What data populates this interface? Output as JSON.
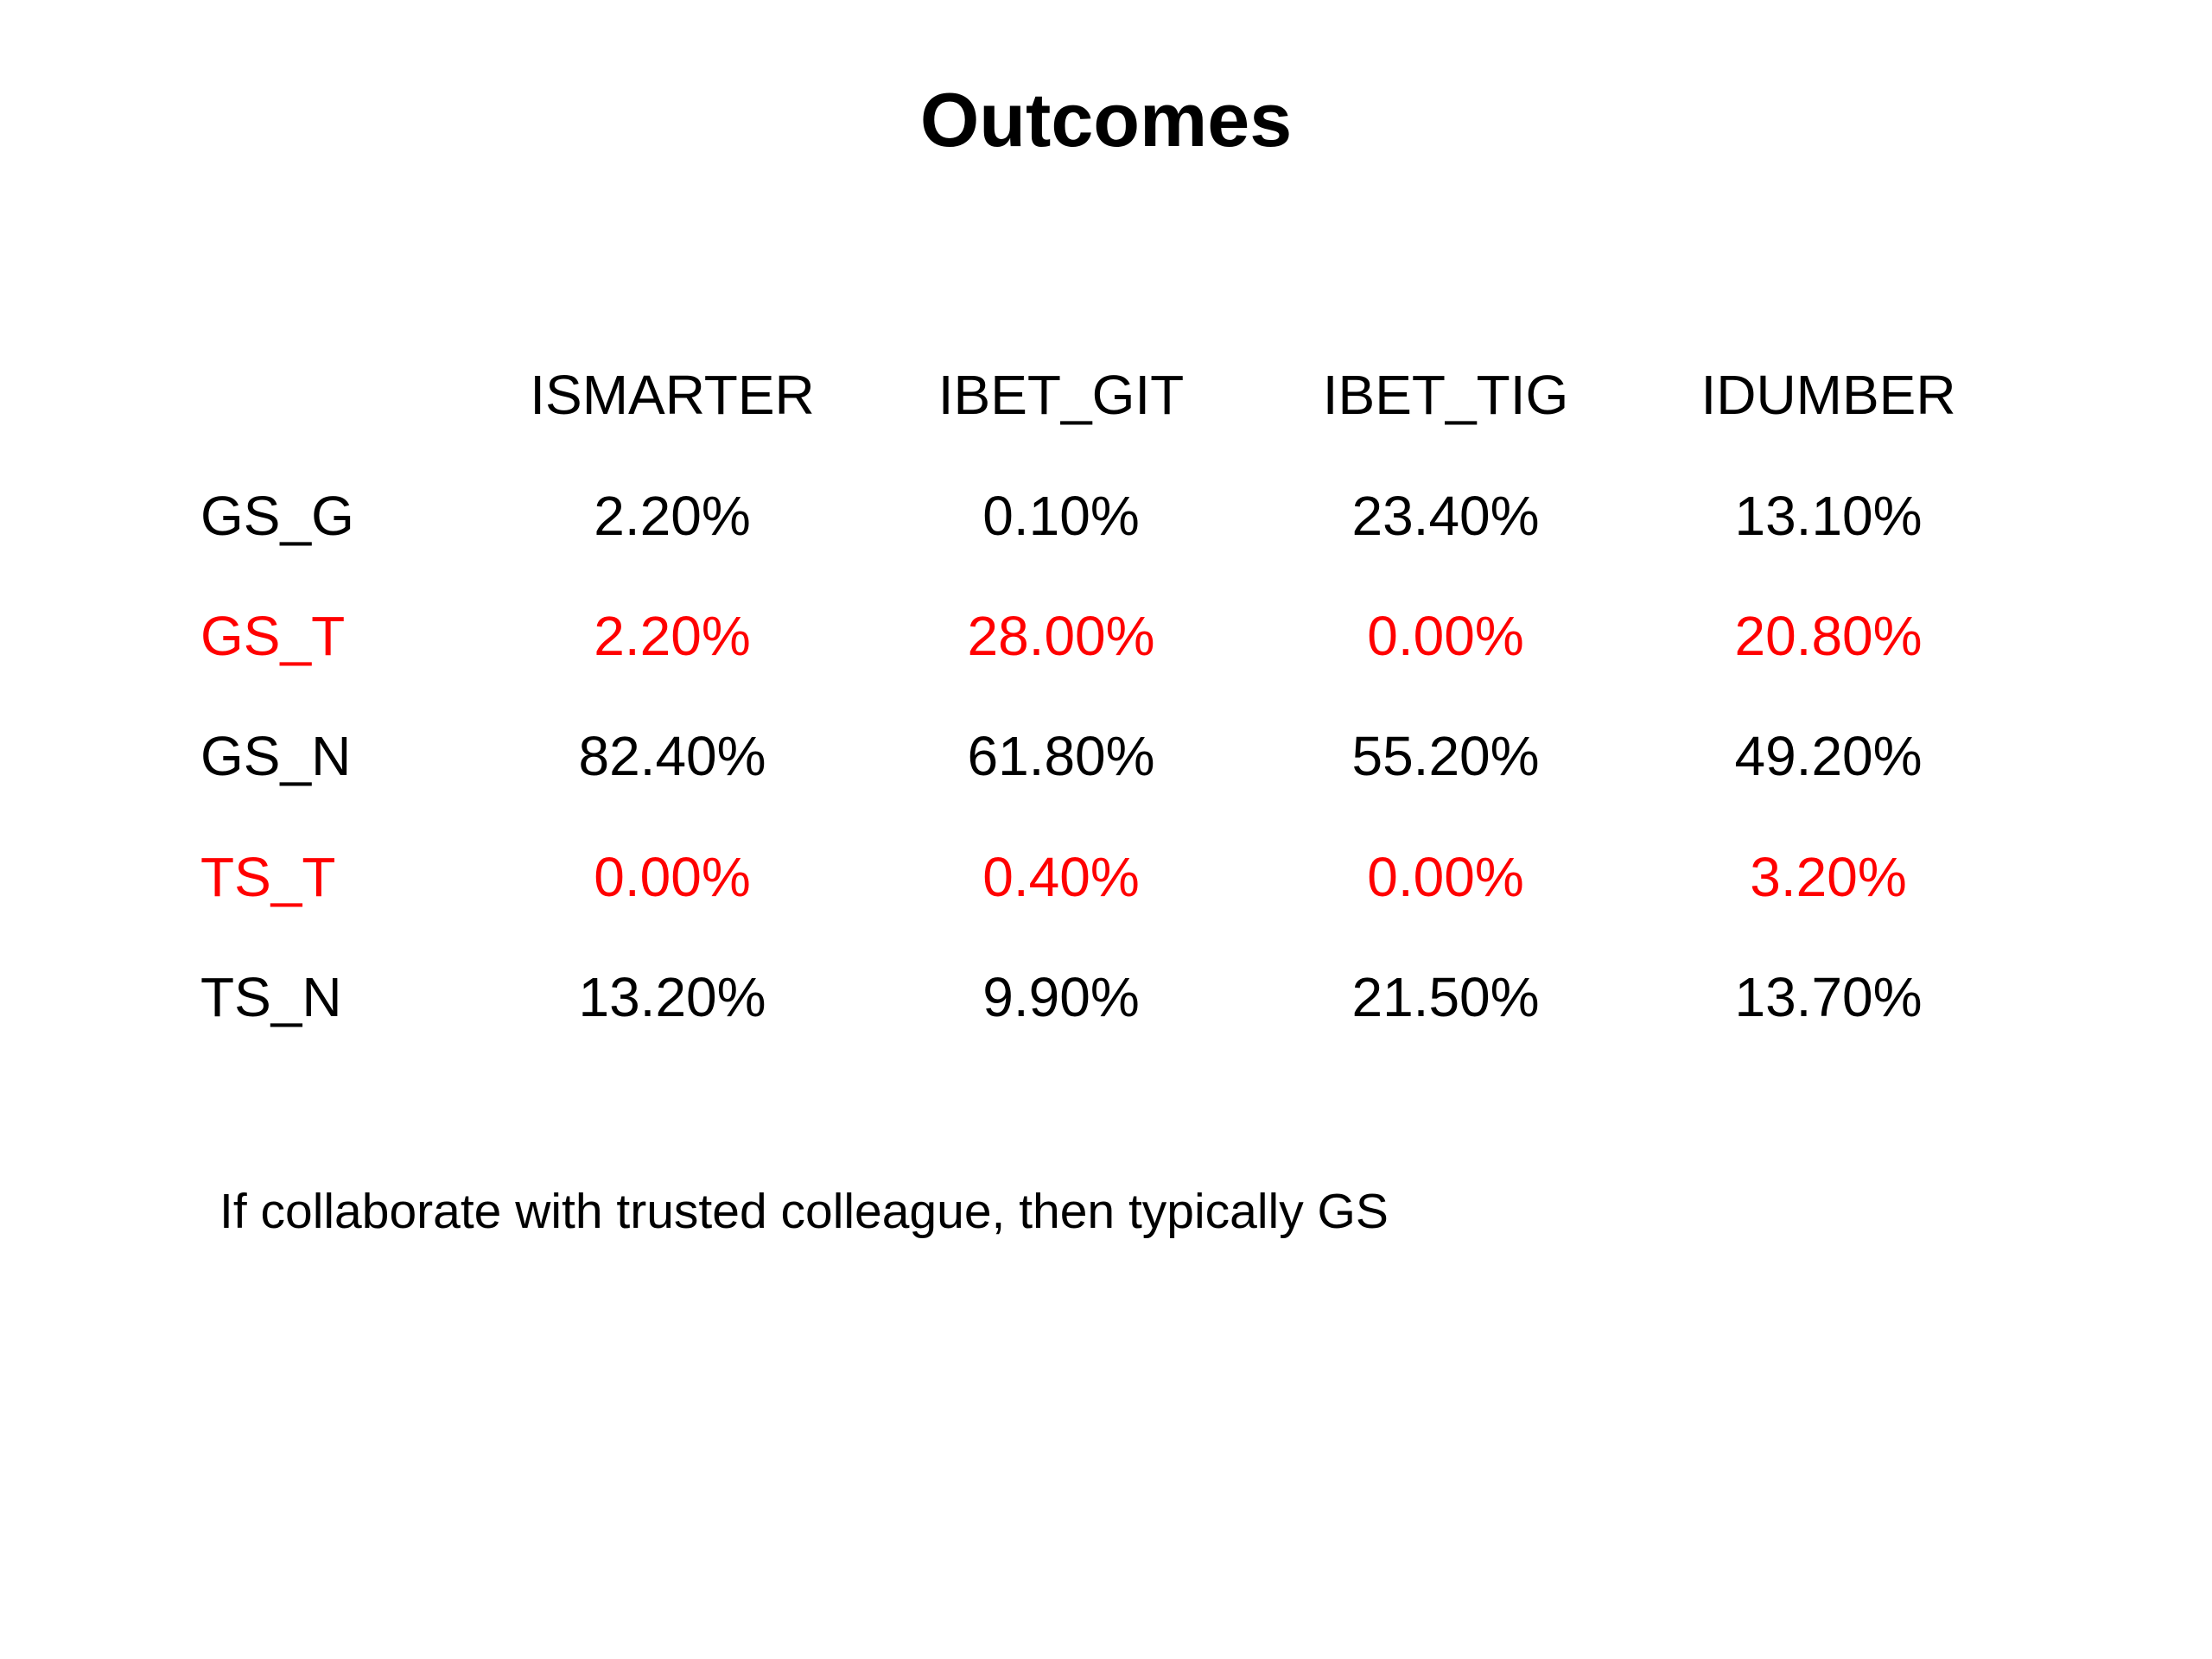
{
  "slide": {
    "title": "Outcomes",
    "note": "If collaborate with trusted colleague, then typically GS"
  },
  "table": {
    "headers": [
      "ISMARTER",
      "IBET_GIT",
      "IBET_TIG",
      "IDUMBER"
    ],
    "rows": [
      {
        "label": "GS_G",
        "highlight": false,
        "values": [
          "2.20%",
          "0.10%",
          "23.40%",
          "13.10%"
        ]
      },
      {
        "label": "GS_T",
        "highlight": true,
        "values": [
          "2.20%",
          "28.00%",
          "0.00%",
          "20.80%"
        ]
      },
      {
        "label": "GS_N",
        "highlight": false,
        "values": [
          "82.40%",
          "61.80%",
          "55.20%",
          "49.20%"
        ]
      },
      {
        "label": "TS_T",
        "highlight": true,
        "values": [
          "0.00%",
          "0.40%",
          "0.00%",
          "3.20%"
        ]
      },
      {
        "label": "TS_N",
        "highlight": false,
        "values": [
          "13.20%",
          "9.90%",
          "21.50%",
          "13.70%"
        ]
      }
    ]
  },
  "colors": {
    "text": "#000000",
    "highlight": "#ff0000",
    "background": "#ffffff"
  }
}
